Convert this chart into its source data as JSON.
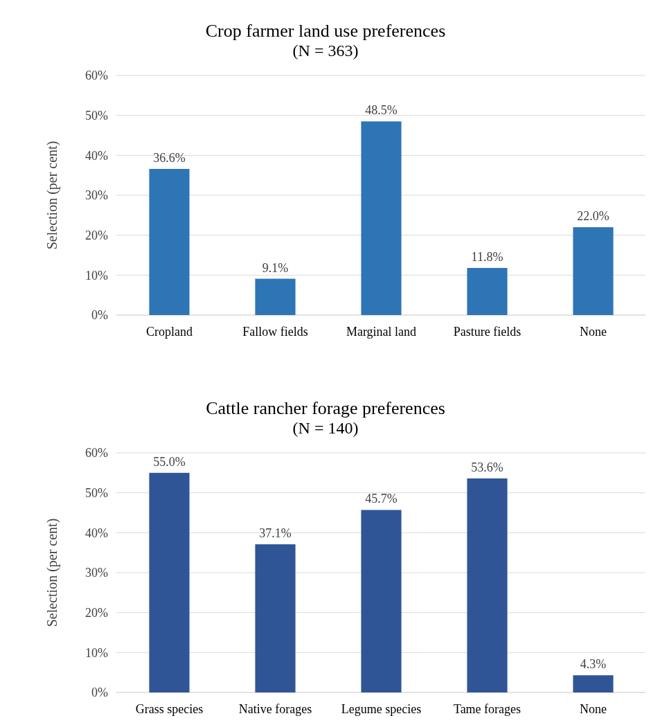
{
  "chart_data": [
    {
      "type": "bar",
      "title": "Crop farmer land use preferences",
      "subtitle": "(N = 363)",
      "ylabel": "Selection (per cent)",
      "categories": [
        "Cropland",
        "Fallow fields",
        "Marginal land",
        "Pasture fields",
        "None"
      ],
      "values": [
        36.6,
        9.1,
        48.5,
        11.8,
        22.0
      ],
      "value_labels": [
        "36.6%",
        "9.1%",
        "48.5%",
        "11.8%",
        "22.0%"
      ],
      "color": "#2e75b6",
      "ylim": [
        0,
        60
      ],
      "yticks": [
        {
          "value": 0,
          "label": "0%"
        },
        {
          "value": 10,
          "label": "10%"
        },
        {
          "value": 20,
          "label": "20%"
        },
        {
          "value": 30,
          "label": "30%"
        },
        {
          "value": 40,
          "label": "40%"
        },
        {
          "value": 50,
          "label": "50%"
        },
        {
          "value": 60,
          "label": "60%"
        }
      ],
      "grid": "y"
    },
    {
      "type": "bar",
      "title": "Cattle rancher forage preferences",
      "subtitle": "(N = 140)",
      "ylabel": "Selection (per cent)",
      "categories": [
        "Grass species",
        "Native forages",
        "Legume species",
        "Tame forages",
        "None"
      ],
      "values": [
        55.0,
        37.1,
        45.7,
        53.6,
        4.3
      ],
      "value_labels": [
        "55.0%",
        "37.1%",
        "45.7%",
        "53.6%",
        "4.3%"
      ],
      "color": "#2f5597",
      "ylim": [
        0,
        60
      ],
      "yticks": [
        {
          "value": 0,
          "label": "0%"
        },
        {
          "value": 10,
          "label": "10%"
        },
        {
          "value": 20,
          "label": "20%"
        },
        {
          "value": 30,
          "label": "30%"
        },
        {
          "value": 40,
          "label": "40%"
        },
        {
          "value": 50,
          "label": "50%"
        },
        {
          "value": 60,
          "label": "60%"
        }
      ],
      "grid": "y"
    }
  ]
}
